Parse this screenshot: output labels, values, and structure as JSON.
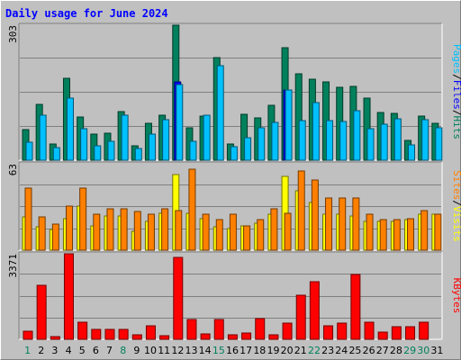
{
  "title": "Daily usage for June 2024",
  "colors": {
    "hits": "#00805c",
    "files": "#0000ff",
    "pages": "#00c0ff",
    "visits": "#ff8000",
    "sites": "#ffff00",
    "kbytes": "#ff0000",
    "separator": "#000000",
    "weekend_day": "#00805c"
  },
  "right_labels": {
    "top": [
      "Hits",
      "Files",
      "Pages"
    ],
    "middle": [
      "Visits",
      "Sites"
    ],
    "bottom": "KBytes"
  },
  "chart_data": [
    {
      "type": "bar",
      "name": "hits-files-pages",
      "max_label": "303",
      "ylim": [
        0,
        303
      ],
      "categories": [
        "1",
        "2",
        "3",
        "4",
        "5",
        "6",
        "7",
        "8",
        "9",
        "10",
        "11",
        "12",
        "13",
        "14",
        "15",
        "16",
        "17",
        "18",
        "19",
        "20",
        "21",
        "22",
        "23",
        "24",
        "25",
        "26",
        "27",
        "28",
        "29",
        "30",
        "31"
      ],
      "series": [
        {
          "name": "Hits",
          "values": [
            68,
            126,
            37,
            183,
            97,
            59,
            60,
            109,
            33,
            83,
            100,
            303,
            73,
            98,
            230,
            37,
            104,
            94,
            124,
            253,
            193,
            182,
            176,
            163,
            166,
            140,
            107,
            105,
            45,
            98,
            82
          ]
        },
        {
          "name": "Files",
          "values": [
            0,
            0,
            0,
            0,
            0,
            0,
            0,
            0,
            0,
            0,
            0,
            175,
            0,
            0,
            0,
            0,
            0,
            0,
            0,
            158,
            0,
            0,
            0,
            0,
            0,
            0,
            0,
            0,
            0,
            0,
            0
          ]
        },
        {
          "name": "Pages",
          "values": [
            40,
            100,
            29,
            139,
            70,
            32,
            42,
            100,
            26,
            58,
            91,
            170,
            42,
            100,
            213,
            31,
            50,
            72,
            84,
            158,
            88,
            130,
            88,
            86,
            111,
            70,
            80,
            92,
            34,
            90,
            73
          ]
        }
      ]
    },
    {
      "type": "bar",
      "name": "visits-sites",
      "max_label": "63",
      "ylim": [
        0,
        63
      ],
      "categories": [
        "1",
        "2",
        "3",
        "4",
        "5",
        "6",
        "7",
        "8",
        "9",
        "10",
        "11",
        "12",
        "13",
        "14",
        "15",
        "16",
        "17",
        "18",
        "19",
        "20",
        "21",
        "22",
        "23",
        "24",
        "25",
        "26",
        "27",
        "28",
        "29",
        "30",
        "31"
      ],
      "series": [
        {
          "name": "Visits",
          "values": [
            45,
            24,
            19,
            32,
            45,
            26,
            30,
            30,
            28,
            26,
            30,
            29,
            59,
            26,
            22,
            26,
            18,
            22,
            30,
            27,
            58,
            51,
            38,
            38,
            38,
            26,
            22,
            22,
            23,
            29,
            26
          ]
        },
        {
          "name": "Sites",
          "values": [
            24,
            17,
            15,
            23,
            32,
            18,
            25,
            25,
            14,
            21,
            27,
            55,
            27,
            23,
            17,
            16,
            18,
            20,
            26,
            54,
            43,
            35,
            26,
            26,
            25,
            21,
            21,
            21,
            22,
            26,
            26
          ]
        }
      ]
    },
    {
      "type": "bar",
      "name": "kbytes",
      "max_label": "3371",
      "ylim": [
        0,
        3371
      ],
      "categories": [
        "1",
        "2",
        "3",
        "4",
        "5",
        "6",
        "7",
        "8",
        "9",
        "10",
        "11",
        "12",
        "13",
        "14",
        "15",
        "16",
        "17",
        "18",
        "19",
        "20",
        "21",
        "22",
        "23",
        "24",
        "25",
        "26",
        "27",
        "28",
        "29",
        "30",
        "31"
      ],
      "series": [
        {
          "name": "KBytes",
          "values": [
            306,
            2114,
            115,
            3371,
            683,
            389,
            394,
            394,
            173,
            548,
            158,
            3217,
            764,
            221,
            770,
            167,
            238,
            832,
            187,
            642,
            1735,
            2262,
            544,
            646,
            2560,
            682,
            294,
            508,
            493,
            665,
            0
          ]
        }
      ]
    }
  ],
  "weekend_days": [
    1,
    8,
    15,
    22,
    29,
    30
  ]
}
